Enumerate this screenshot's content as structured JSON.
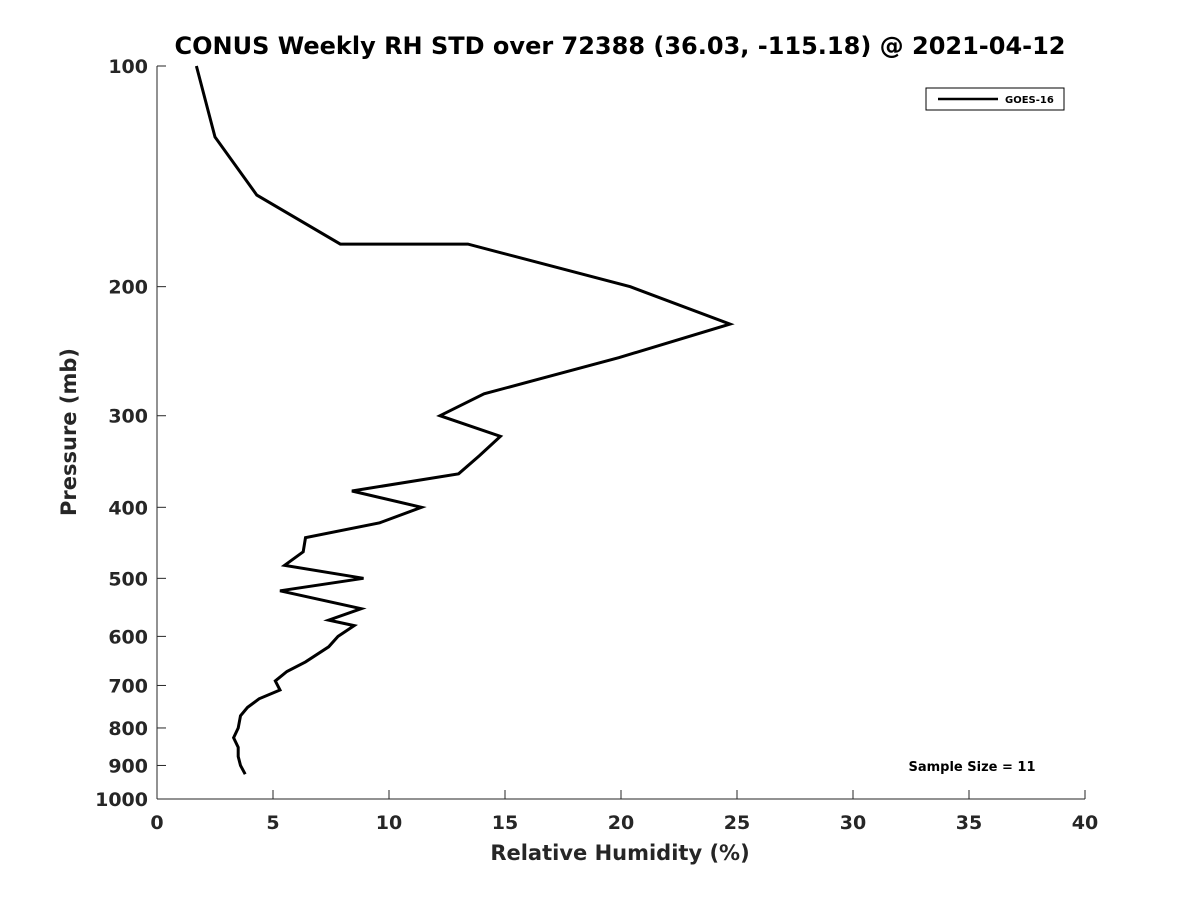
{
  "chart_data": {
    "type": "line",
    "title": "CONUS Weekly RH STD over 72388 (36.03, -115.18) @ 2021-04-12",
    "xlabel": "Relative Humidity (%)",
    "ylabel": "Pressure (mb)",
    "xlim": [
      0,
      40
    ],
    "ylim": [
      100,
      1000
    ],
    "yscale": "log",
    "yaxis_reversed": true,
    "x_ticks": [
      "0",
      "5",
      "10",
      "15",
      "20",
      "25",
      "30",
      "35",
      "40"
    ],
    "y_ticks": [
      "100",
      "200",
      "300",
      "400",
      "500",
      "600",
      "700",
      "800",
      "900",
      "1000"
    ],
    "grid": false,
    "legend_position": "top-right",
    "annotation": "Sample Size = 11",
    "series": [
      {
        "name": "GOES-16",
        "color": "#000000",
        "points": [
          {
            "rh": 1.7,
            "p": 100
          },
          {
            "rh": 2.5,
            "p": 125
          },
          {
            "rh": 4.3,
            "p": 150
          },
          {
            "rh": 7.9,
            "p": 175
          },
          {
            "rh": 13.3,
            "p": 175
          },
          {
            "rh": 13.4,
            "p": 175
          },
          {
            "rh": 20.4,
            "p": 200
          },
          {
            "rh": 24.7,
            "p": 225
          },
          {
            "rh": 19.9,
            "p": 250
          },
          {
            "rh": 14.1,
            "p": 280
          },
          {
            "rh": 12.2,
            "p": 300
          },
          {
            "rh": 14.8,
            "p": 320
          },
          {
            "rh": 13.9,
            "p": 340
          },
          {
            "rh": 13.0,
            "p": 360
          },
          {
            "rh": 8.4,
            "p": 380
          },
          {
            "rh": 11.4,
            "p": 400
          },
          {
            "rh": 9.6,
            "p": 420
          },
          {
            "rh": 6.4,
            "p": 440
          },
          {
            "rh": 6.3,
            "p": 460
          },
          {
            "rh": 5.5,
            "p": 480
          },
          {
            "rh": 8.9,
            "p": 500
          },
          {
            "rh": 5.3,
            "p": 520
          },
          {
            "rh": 8.8,
            "p": 550
          },
          {
            "rh": 7.4,
            "p": 570
          },
          {
            "rh": 8.5,
            "p": 580
          },
          {
            "rh": 7.8,
            "p": 600
          },
          {
            "rh": 7.4,
            "p": 620
          },
          {
            "rh": 6.4,
            "p": 650
          },
          {
            "rh": 5.6,
            "p": 670
          },
          {
            "rh": 5.1,
            "p": 690
          },
          {
            "rh": 5.3,
            "p": 710
          },
          {
            "rh": 4.4,
            "p": 730
          },
          {
            "rh": 3.9,
            "p": 750
          },
          {
            "rh": 3.6,
            "p": 770
          },
          {
            "rh": 3.5,
            "p": 800
          },
          {
            "rh": 3.3,
            "p": 825
          },
          {
            "rh": 3.5,
            "p": 850
          },
          {
            "rh": 3.5,
            "p": 875
          },
          {
            "rh": 3.6,
            "p": 900
          },
          {
            "rh": 3.8,
            "p": 925
          }
        ]
      }
    ]
  }
}
